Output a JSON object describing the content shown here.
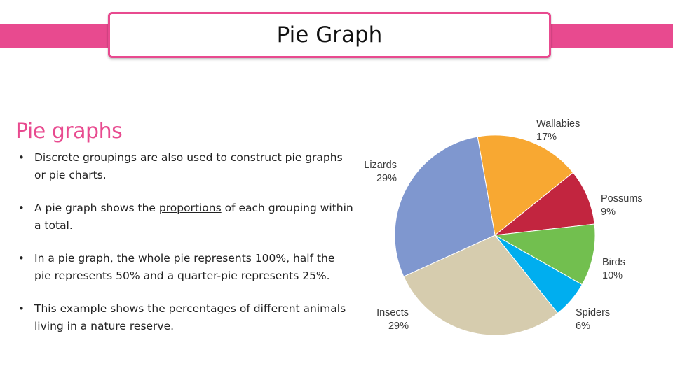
{
  "slide": {
    "title": "Pie Graph",
    "heading": "Pie graphs",
    "bullets": [
      {
        "before": "",
        "link": "Discrete groupings ",
        "after": "are also used to construct pie graphs or pie charts."
      },
      {
        "before": "A pie graph shows the ",
        "link": "proportions",
        "after": " of each grouping within a total."
      },
      {
        "before": "In a pie graph, the whole pie represents 100%, half the pie represents 50% and a quarter-pie represents 25%.",
        "link": "",
        "after": ""
      },
      {
        "before": "This example shows the percentages of different animals living in a nature reserve.",
        "link": "",
        "after": ""
      }
    ],
    "bullet_glyph": "•"
  },
  "colors": {
    "accent": "#e84a8f",
    "wallabies": "#f8a832",
    "possums": "#c2253f",
    "birds": "#72bf4f",
    "spiders": "#00aeef",
    "insects": "#d6ccae",
    "lizards": "#7f97cf"
  },
  "chart_data": {
    "type": "pie",
    "slices": [
      {
        "label": "Wallabies",
        "value": 17,
        "value_label": "17%",
        "color": "#f8a832"
      },
      {
        "label": "Possums",
        "value": 9,
        "value_label": "9%",
        "color": "#c2253f"
      },
      {
        "label": "Birds",
        "value": 10,
        "value_label": "10%",
        "color": "#72bf4f"
      },
      {
        "label": "Spiders",
        "value": 6,
        "value_label": "6%",
        "color": "#00aeef"
      },
      {
        "label": "Insects",
        "value": 29,
        "value_label": "29%",
        "color": "#d6ccae"
      },
      {
        "label": "Lizards",
        "value": 29,
        "value_label": "29%",
        "color": "#7f97cf"
      }
    ],
    "start_angle_deg": -10,
    "direction": "clockwise"
  }
}
